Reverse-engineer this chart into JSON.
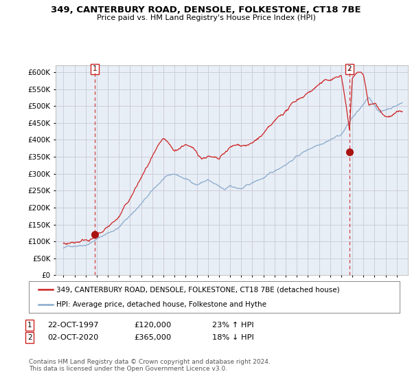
{
  "title": "349, CANTERBURY ROAD, DENSOLE, FOLKESTONE, CT18 7BE",
  "subtitle": "Price paid vs. HM Land Registry's House Price Index (HPI)",
  "legend_line1": "349, CANTERBURY ROAD, DENSOLE, FOLKESTONE, CT18 7BE (detached house)",
  "legend_line2": "HPI: Average price, detached house, Folkestone and Hythe",
  "annotation1_date": "22-OCT-1997",
  "annotation1_price": "£120,000",
  "annotation1_hpi": "23% ↑ HPI",
  "annotation1_year": 1997.8,
  "annotation1_value": 120000,
  "annotation2_date": "02-OCT-2020",
  "annotation2_price": "£365,000",
  "annotation2_hpi": "18% ↓ HPI",
  "annotation2_year": 2020.75,
  "annotation2_value": 365000,
  "house_color": "#cc2222",
  "hpi_color": "#88aacc",
  "dot_color": "#aa1111",
  "vline_color": "#cc2222",
  "chart_bg": "#e8eef5",
  "ylim": [
    0,
    620000
  ],
  "yticks": [
    0,
    50000,
    100000,
    150000,
    200000,
    250000,
    300000,
    350000,
    400000,
    450000,
    500000,
    550000,
    600000
  ],
  "footer": "Contains HM Land Registry data © Crown copyright and database right 2024.\nThis data is licensed under the Open Government Licence v3.0.",
  "background_color": "#ffffff",
  "grid_color": "#ccccdd"
}
